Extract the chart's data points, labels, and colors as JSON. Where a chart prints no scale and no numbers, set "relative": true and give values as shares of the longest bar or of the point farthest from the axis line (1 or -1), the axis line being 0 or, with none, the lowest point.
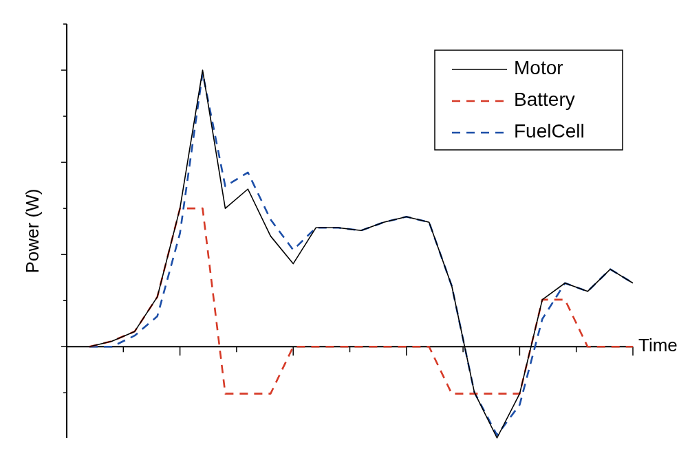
{
  "chart_data": {
    "type": "line",
    "relative": true,
    "ylabel": "Power (W)",
    "xlabel": "Time",
    "legend": "top right",
    "grid": false,
    "categories": [
      null,
      null,
      null,
      null,
      null,
      null,
      null,
      null,
      null,
      null,
      null,
      null,
      null,
      null,
      null,
      null,
      null,
      null,
      null,
      null,
      null,
      null,
      null,
      null,
      null
    ],
    "series": [
      {
        "name": "Motor",
        "color": "#000000",
        "line_style": "solid",
        "values": [
          0,
          0.02,
          0.055,
          0.18,
          0.5,
          1,
          0.5,
          0.57,
          0.4,
          0.3,
          0.43,
          0.43,
          0.42,
          0.45,
          0.47,
          0.45,
          0.22,
          -0.165,
          -0.33,
          -0.17,
          0.17,
          0.23,
          0.2,
          0.28,
          0.23
        ]
      },
      {
        "name": "Battery",
        "color": "#d63a27",
        "line_style": "dashed",
        "values": [
          0,
          0.02,
          0.055,
          0.18,
          0.5,
          0.5,
          -0.17,
          -0.17,
          -0.17,
          0,
          0,
          0,
          0,
          0,
          0,
          0,
          -0.17,
          -0.17,
          -0.17,
          -0.17,
          0.17,
          0.17,
          0,
          0,
          0
        ]
      },
      {
        "name": "FuelCell",
        "color": "#1d4fa8",
        "line_style": "dashed",
        "values": [
          0,
          0,
          0.04,
          0.11,
          0.41,
          0.99,
          0.58,
          0.63,
          0.46,
          0.35,
          0.43,
          0.43,
          0.42,
          0.45,
          0.47,
          0.45,
          0.22,
          -0.165,
          -0.32,
          -0.21,
          0.1,
          0.23,
          0.2,
          0.28,
          0.23
        ]
      }
    ]
  }
}
